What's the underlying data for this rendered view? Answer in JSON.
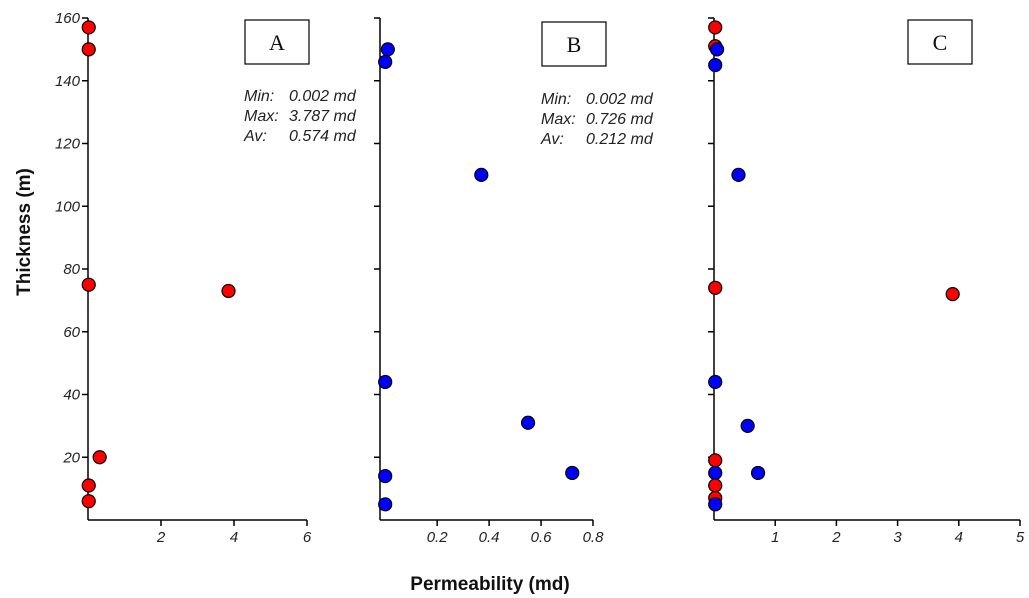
{
  "colors": {
    "red": "#ff0000",
    "blue": "#0000ff",
    "axis": "#000000"
  },
  "figure": {
    "ylabel": "Thickness (m)",
    "xlabel": "Permeability (md)"
  },
  "chart_data": [
    {
      "type": "scatter",
      "panel": "A",
      "ylabel": "Thickness (m)",
      "xlim": [
        0,
        6
      ],
      "ylim": [
        0,
        160
      ],
      "xticks": [
        {
          "v": 2,
          "label": "2"
        },
        {
          "v": 4,
          "label": "4"
        },
        {
          "v": 6,
          "label": "6"
        }
      ],
      "yticks": [
        {
          "v": 20,
          "label": "20"
        },
        {
          "v": 40,
          "label": "40"
        },
        {
          "v": 60,
          "label": "60"
        },
        {
          "v": 80,
          "label": "80"
        },
        {
          "v": 100,
          "label": "100"
        },
        {
          "v": 120,
          "label": "120"
        },
        {
          "v": 140,
          "label": "140"
        },
        {
          "v": 160,
          "label": "160"
        }
      ],
      "stats": {
        "min_label": "Min:",
        "min_value": "0.002 md",
        "max_label": "Max:",
        "max_value": "3.787 md",
        "av_label": "Av:",
        "av_value": "0.574 md"
      },
      "series": [
        {
          "color": "red",
          "points": [
            [
              0.02,
              157
            ],
            [
              0.02,
              150
            ],
            [
              0.02,
              75
            ],
            [
              3.85,
              73
            ],
            [
              0.32,
              20
            ],
            [
              0.02,
              11
            ],
            [
              0.02,
              6
            ]
          ]
        }
      ]
    },
    {
      "type": "scatter",
      "panel": "B",
      "xlim": [
        -0.02,
        0.8
      ],
      "ylim": [
        0,
        160
      ],
      "xticks": [
        {
          "v": 0.2,
          "label": "0.2"
        },
        {
          "v": 0.4,
          "label": "0.4"
        },
        {
          "v": 0.6,
          "label": "0.6"
        },
        {
          "v": 0.8,
          "label": "0.8"
        }
      ],
      "yticks": [
        {
          "v": 20,
          "label": ""
        },
        {
          "v": 40,
          "label": ""
        },
        {
          "v": 60,
          "label": ""
        },
        {
          "v": 80,
          "label": ""
        },
        {
          "v": 100,
          "label": ""
        },
        {
          "v": 120,
          "label": ""
        },
        {
          "v": 140,
          "label": ""
        },
        {
          "v": 160,
          "label": ""
        }
      ],
      "stats": {
        "min_label": "Min:",
        "min_value": "0.002 md",
        "max_label": "Max:",
        "max_value": "0.726 md",
        "av_label": "Av:",
        "av_value": "0.212 md"
      },
      "series": [
        {
          "color": "blue",
          "points": [
            [
              0.01,
              150
            ],
            [
              0.0,
              146
            ],
            [
              0.37,
              110
            ],
            [
              0.0,
              44
            ],
            [
              0.55,
              31
            ],
            [
              0.72,
              15
            ],
            [
              0.0,
              14
            ],
            [
              0.0,
              5
            ]
          ]
        }
      ]
    },
    {
      "type": "scatter",
      "panel": "C",
      "xlim": [
        0,
        5
      ],
      "ylim": [
        0,
        160
      ],
      "xticks": [
        {
          "v": 1,
          "label": "1"
        },
        {
          "v": 2,
          "label": "2"
        },
        {
          "v": 3,
          "label": "3"
        },
        {
          "v": 4,
          "label": "4"
        },
        {
          "v": 5,
          "label": "5"
        }
      ],
      "yticks": [
        {
          "v": 20,
          "label": ""
        },
        {
          "v": 40,
          "label": ""
        },
        {
          "v": 60,
          "label": ""
        },
        {
          "v": 80,
          "label": ""
        },
        {
          "v": 100,
          "label": ""
        },
        {
          "v": 120,
          "label": ""
        },
        {
          "v": 140,
          "label": ""
        },
        {
          "v": 160,
          "label": ""
        }
      ],
      "series": [
        {
          "color": "red",
          "points": [
            [
              0.02,
              157
            ],
            [
              0.02,
              151
            ],
            [
              0.02,
              74
            ],
            [
              3.9,
              72
            ],
            [
              0.02,
              19
            ],
            [
              0.02,
              11
            ],
            [
              0.02,
              7
            ]
          ]
        },
        {
          "color": "blue",
          "points": [
            [
              0.05,
              150
            ],
            [
              0.02,
              145
            ],
            [
              0.4,
              110
            ],
            [
              0.02,
              44
            ],
            [
              0.55,
              30
            ],
            [
              0.72,
              15
            ],
            [
              0.02,
              15
            ],
            [
              0.02,
              5
            ]
          ]
        }
      ]
    }
  ]
}
